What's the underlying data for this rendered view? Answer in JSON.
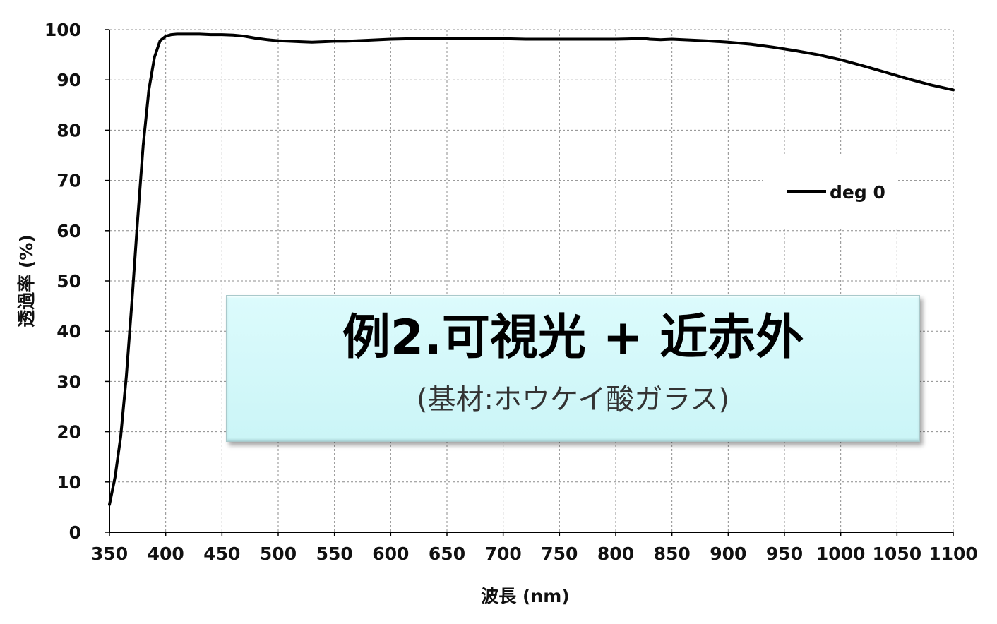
{
  "chart_data": {
    "type": "line",
    "xlabel": "波長 (nm)",
    "ylabel": "透過率 (%)",
    "xlim": [
      350,
      1100
    ],
    "ylim": [
      0,
      100
    ],
    "x_ticks": [
      350,
      400,
      450,
      500,
      550,
      600,
      650,
      700,
      750,
      800,
      850,
      900,
      950,
      1000,
      1050,
      1100
    ],
    "y_ticks": [
      0,
      10,
      20,
      30,
      40,
      50,
      60,
      70,
      80,
      90,
      100
    ],
    "grid": true,
    "legend_position": "right",
    "series": [
      {
        "name": "deg 0",
        "color": "#000000",
        "x": [
          350,
          355,
          360,
          365,
          370,
          375,
          380,
          385,
          390,
          395,
          400,
          405,
          410,
          420,
          430,
          440,
          450,
          460,
          470,
          480,
          490,
          500,
          510,
          520,
          530,
          540,
          550,
          560,
          570,
          580,
          590,
          600,
          620,
          640,
          660,
          680,
          700,
          720,
          740,
          760,
          780,
          800,
          820,
          825,
          830,
          840,
          850,
          860,
          880,
          900,
          920,
          940,
          960,
          980,
          1000,
          1020,
          1040,
          1060,
          1080,
          1100
        ],
        "y": [
          5.5,
          11,
          19,
          31,
          46,
          62,
          77,
          88,
          94.5,
          97.8,
          98.7,
          99,
          99.1,
          99.1,
          99.1,
          99,
          99,
          98.9,
          98.7,
          98.3,
          98,
          97.8,
          97.7,
          97.6,
          97.5,
          97.6,
          97.7,
          97.7,
          97.8,
          97.9,
          98,
          98.1,
          98.2,
          98.3,
          98.3,
          98.2,
          98.2,
          98.1,
          98.1,
          98.1,
          98.1,
          98.1,
          98.2,
          98.3,
          98.1,
          98,
          98.1,
          98,
          97.8,
          97.5,
          97.1,
          96.5,
          95.8,
          95,
          94,
          92.8,
          91.5,
          90.2,
          89,
          88
        ]
      }
    ]
  },
  "annotation": {
    "title": "例2.可視光 + 近赤外",
    "subtitle": "(基材:ホウケイ酸ガラス)"
  }
}
